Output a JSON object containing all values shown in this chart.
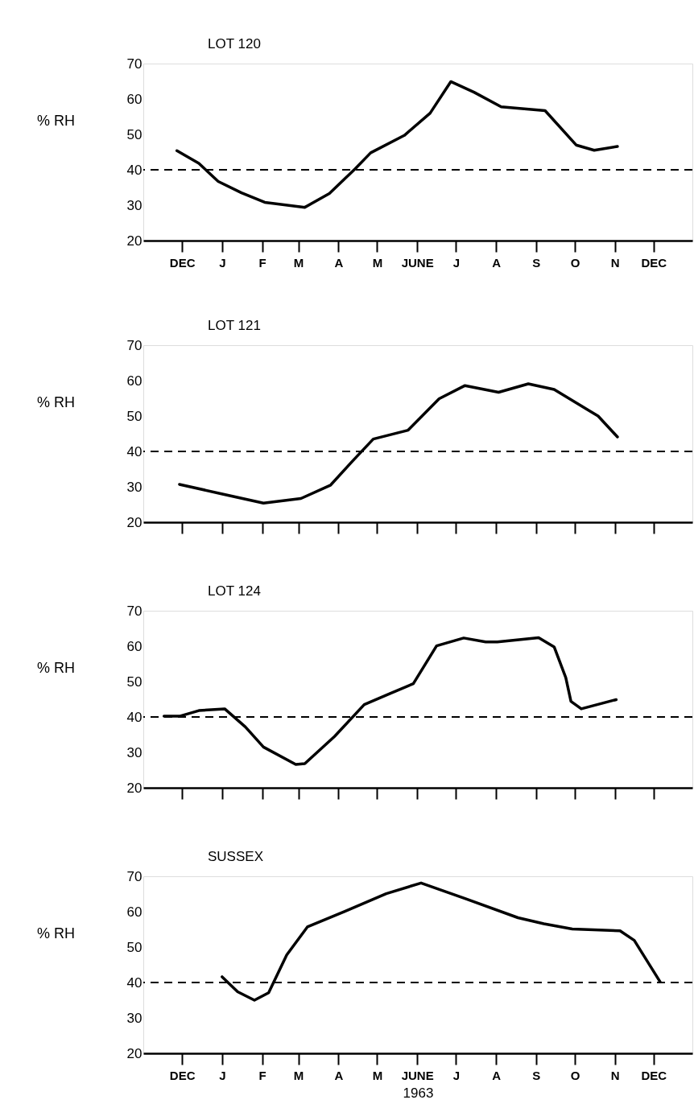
{
  "chart_data": [
    {
      "type": "line",
      "title": "LOT 120",
      "ylabel": "% RH",
      "xlim": [
        "1962-11-15",
        "1964-01-14"
      ],
      "ylim": [
        20,
        70
      ],
      "yticks": [
        20,
        30,
        40,
        50,
        60,
        70
      ],
      "xticks": [
        {
          "value": "1962-12-15",
          "label": "DEC"
        },
        {
          "value": "1963-01-15",
          "label": "J"
        },
        {
          "value": "1963-02-15",
          "label": "F"
        },
        {
          "value": "1963-03-15",
          "label": "M"
        },
        {
          "value": "1963-04-15",
          "label": "A"
        },
        {
          "value": "1963-05-15",
          "label": "M"
        },
        {
          "value": "1963-06-15",
          "label": "JUNE"
        },
        {
          "value": "1963-07-15",
          "label": "J"
        },
        {
          "value": "1963-08-15",
          "label": "A"
        },
        {
          "value": "1963-09-15",
          "label": "S"
        },
        {
          "value": "1963-10-15",
          "label": "O"
        },
        {
          "value": "1963-11-15",
          "label": "N"
        },
        {
          "value": "1963-12-15",
          "label": "DEC"
        }
      ],
      "grid": false,
      "line_style": "solid",
      "ref_lines": [
        {
          "axis": "y",
          "value": 40,
          "line_style": "dashed"
        }
      ],
      "series": [
        {
          "color": "#000000",
          "x": [
            "1962-12-11",
            "1962-12-28",
            "1963-01-12",
            "1963-01-30",
            "1963-02-17",
            "1963-03-20",
            "1963-04-08",
            "1963-04-28",
            "1963-05-10",
            "1963-06-05",
            "1963-06-25",
            "1963-07-11",
            "1963-07-29",
            "1963-08-19",
            "1963-09-22",
            "1963-10-16",
            "1963-10-30",
            "1963-11-17"
          ],
          "values": [
            45.4,
            41.8,
            36.7,
            33.5,
            30.8,
            29.4,
            33.3,
            40.3,
            44.8,
            49.7,
            56.0,
            64.9,
            61.9,
            57.8,
            56.7,
            47.0,
            45.5,
            46.6
          ]
        }
      ]
    },
    {
      "type": "line",
      "title": "LOT 121",
      "ylabel": "% RH",
      "xlim": [
        "1962-11-15",
        "1964-01-14"
      ],
      "ylim": [
        20,
        70
      ],
      "yticks": [
        20,
        30,
        40,
        50,
        60,
        70
      ],
      "xticks": [
        {
          "value": "1962-12-15",
          "label": null
        },
        {
          "value": "1963-01-15",
          "label": null
        },
        {
          "value": "1963-02-15",
          "label": null
        },
        {
          "value": "1963-03-15",
          "label": null
        },
        {
          "value": "1963-04-15",
          "label": null
        },
        {
          "value": "1963-05-15",
          "label": null
        },
        {
          "value": "1963-06-15",
          "label": null
        },
        {
          "value": "1963-07-15",
          "label": null
        },
        {
          "value": "1963-08-15",
          "label": null
        },
        {
          "value": "1963-09-15",
          "label": null
        },
        {
          "value": "1963-10-15",
          "label": null
        },
        {
          "value": "1963-11-15",
          "label": null
        },
        {
          "value": "1963-12-15",
          "label": null
        }
      ],
      "tick_labels": "y",
      "grid": false,
      "line_style": "solid",
      "ref_lines": [
        {
          "axis": "y",
          "value": 40,
          "line_style": "dashed"
        }
      ],
      "series": [
        {
          "color": "#000000",
          "x": [
            "1962-12-13",
            "1963-01-16",
            "1963-02-16",
            "1963-03-17",
            "1963-04-09",
            "1963-04-26",
            "1963-05-12",
            "1963-06-08",
            "1963-07-02",
            "1963-07-22",
            "1963-08-17",
            "1963-09-09",
            "1963-09-29",
            "1963-10-17",
            "1963-11-02",
            "1963-11-17"
          ],
          "values": [
            30.7,
            27.9,
            25.4,
            26.7,
            30.5,
            37.3,
            43.5,
            46.0,
            54.9,
            58.6,
            56.7,
            59.1,
            57.5,
            53.5,
            50.0,
            44.1
          ]
        }
      ]
    },
    {
      "type": "line",
      "title": "LOT 124",
      "ylabel": "% RH",
      "xlim": [
        "1962-11-15",
        "1964-01-14"
      ],
      "ylim": [
        20,
        70
      ],
      "yticks": [
        20,
        30,
        40,
        50,
        60,
        70
      ],
      "xticks": [
        {
          "value": "1962-12-15",
          "label": null
        },
        {
          "value": "1963-01-15",
          "label": null
        },
        {
          "value": "1963-02-15",
          "label": null
        },
        {
          "value": "1963-03-15",
          "label": null
        },
        {
          "value": "1963-04-15",
          "label": null
        },
        {
          "value": "1963-05-15",
          "label": null
        },
        {
          "value": "1963-06-15",
          "label": null
        },
        {
          "value": "1963-07-15",
          "label": null
        },
        {
          "value": "1963-08-15",
          "label": null
        },
        {
          "value": "1963-09-15",
          "label": null
        },
        {
          "value": "1963-10-15",
          "label": null
        },
        {
          "value": "1963-11-15",
          "label": null
        },
        {
          "value": "1963-12-15",
          "label": null
        }
      ],
      "tick_labels": "y",
      "grid": false,
      "line_style": "solid",
      "ref_lines": [
        {
          "axis": "y",
          "value": 40,
          "line_style": "dashed"
        }
      ],
      "series": [
        {
          "color": "#000000",
          "x": [
            "1962-12-01",
            "1962-12-13",
            "1962-12-28",
            "1963-01-17",
            "1963-02-02",
            "1963-02-16",
            "1963-03-13",
            "1963-03-20",
            "1963-04-12",
            "1963-05-05",
            "1963-05-25",
            "1963-06-12",
            "1963-06-30",
            "1963-07-21",
            "1963-08-07",
            "1963-08-16",
            "1963-09-17",
            "1963-09-29",
            "1963-10-08",
            "1963-10-12",
            "1963-10-20",
            "1963-11-16"
          ],
          "values": [
            40.2,
            40.2,
            41.8,
            42.3,
            37.2,
            31.5,
            26.6,
            26.8,
            34.5,
            43.5,
            46.6,
            49.4,
            60.1,
            62.3,
            61.2,
            61.2,
            62.4,
            59.8,
            51.1,
            44.4,
            42.3,
            44.9
          ]
        }
      ]
    },
    {
      "type": "line",
      "title": "SUSSEX",
      "ylabel": "% RH",
      "xlabel": "1963",
      "xlim": [
        "1962-11-15",
        "1964-01-14"
      ],
      "ylim": [
        20,
        70
      ],
      "yticks": [
        20,
        30,
        40,
        50,
        60,
        70
      ],
      "xticks": [
        {
          "value": "1962-12-15",
          "label": "DEC"
        },
        {
          "value": "1963-01-15",
          "label": "J"
        },
        {
          "value": "1963-02-15",
          "label": "F"
        },
        {
          "value": "1963-03-15",
          "label": "M"
        },
        {
          "value": "1963-04-15",
          "label": "A"
        },
        {
          "value": "1963-05-15",
          "label": "M"
        },
        {
          "value": "1963-06-15",
          "label": "JUNE"
        },
        {
          "value": "1963-07-15",
          "label": "J"
        },
        {
          "value": "1963-08-15",
          "label": "A"
        },
        {
          "value": "1963-09-15",
          "label": "S"
        },
        {
          "value": "1963-10-15",
          "label": "O"
        },
        {
          "value": "1963-11-15",
          "label": "N"
        },
        {
          "value": "1963-12-15",
          "label": "DEC"
        }
      ],
      "grid": false,
      "line_style": "solid",
      "ref_lines": [
        {
          "axis": "y",
          "value": 40,
          "line_style": "dashed"
        }
      ],
      "series": [
        {
          "color": "#000000",
          "x": [
            "1963-01-15",
            "1963-01-27",
            "1963-02-09",
            "1963-02-20",
            "1963-03-06",
            "1963-03-22",
            "1963-04-20",
            "1963-05-22",
            "1963-06-18",
            "1963-07-22",
            "1963-09-01",
            "1963-09-21",
            "1963-10-13",
            "1963-11-19",
            "1963-11-30",
            "1963-12-20"
          ],
          "values": [
            41.6,
            37.4,
            35.0,
            37.1,
            47.8,
            55.7,
            60.1,
            65.1,
            68.1,
            63.7,
            58.3,
            56.6,
            55.1,
            54.6,
            51.9,
            40.2
          ]
        }
      ]
    }
  ]
}
